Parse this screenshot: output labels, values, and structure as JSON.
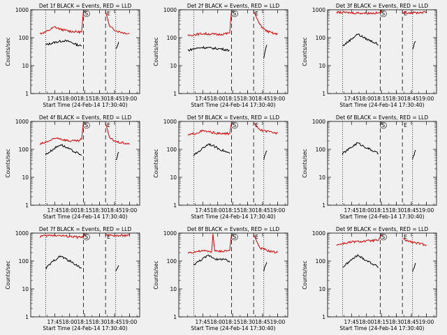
{
  "chart_data": [
    {
      "type": "line",
      "title": "Det 1f BLACK = Events, RED = LLD",
      "ylabel": "Counts/sec",
      "xlabel": "Start Time (24-Feb-14 17:30:40)",
      "yscale": "log",
      "ylim": [
        1,
        1000
      ],
      "yticks": [
        "1",
        "10",
        "100",
        "1000"
      ],
      "xticks": [
        "17:45",
        "18:00",
        "18:15",
        "18:30",
        "18:45",
        "19:00"
      ],
      "markers": {
        "S": "S",
        "E": "E"
      },
      "series": [
        {
          "name": "Events",
          "color": "#000000",
          "segments": [
            [
              [
                17.6,
                55
              ],
              [
                17.75,
                68
              ],
              [
                17.9,
                78
              ],
              [
                18.0,
                72
              ],
              [
                18.1,
                58
              ],
              [
                18.2,
                50
              ]
            ],
            [
              [
                18.77,
                40
              ],
              [
                18.82,
                70
              ]
            ]
          ]
        },
        {
          "name": "LLD",
          "color": "#dd0000",
          "segments": [
            [
              [
                17.5,
                140
              ],
              [
                17.6,
                160
              ],
              [
                17.75,
                240
              ],
              [
                17.85,
                200
              ],
              [
                18.0,
                170
              ],
              [
                18.15,
                160
              ],
              [
                18.2,
                160
              ],
              [
                18.23,
                900
              ]
            ],
            [
              [
                18.6,
                900
              ],
              [
                18.67,
                240
              ],
              [
                18.8,
                170
              ],
              [
                18.9,
                150
              ],
              [
                19.0,
                140
              ]
            ]
          ]
        }
      ]
    },
    {
      "type": "line",
      "title": "Det 2f BLACK = Events, RED = LLD",
      "ylabel": "Counts/sec",
      "xlabel": "Start Time (24-Feb-14 17:30:40)",
      "yscale": "log",
      "ylim": [
        1,
        1000
      ],
      "yticks": [
        "1",
        "10",
        "100",
        "1000"
      ],
      "xticks": [
        "17:45",
        "18:00",
        "18:15",
        "18:30",
        "18:45",
        "19:00"
      ],
      "markers": {
        "S": "S",
        "E": "E"
      },
      "series": [
        {
          "name": "Events",
          "color": "#000000",
          "segments": [
            [
              [
                17.5,
                35
              ],
              [
                17.6,
                40
              ],
              [
                17.75,
                45
              ],
              [
                17.9,
                42
              ],
              [
                18.05,
                40
              ],
              [
                18.2,
                35
              ]
            ],
            [
              [
                18.77,
                20
              ],
              [
                18.82,
                55
              ]
            ]
          ]
        },
        {
          "name": "LLD",
          "color": "#dd0000",
          "segments": [
            [
              [
                17.5,
                120
              ],
              [
                17.75,
                140
              ],
              [
                18.0,
                130
              ],
              [
                18.15,
                140
              ],
              [
                18.2,
                150
              ],
              [
                18.23,
                900
              ]
            ],
            [
              [
                18.6,
                900
              ],
              [
                18.7,
                300
              ],
              [
                18.8,
                180
              ],
              [
                18.9,
                150
              ],
              [
                19.0,
                130
              ]
            ]
          ]
        }
      ]
    },
    {
      "type": "line",
      "title": "Det 3f BLACK = Events, RED = LLD",
      "ylabel": "Counts/sec",
      "xlabel": "Start Time (24-Feb-14 17:30:40)",
      "yscale": "log",
      "ylim": [
        1,
        1000
      ],
      "yticks": [
        "1",
        "10",
        "100",
        "1000"
      ],
      "xticks": [
        "17:45",
        "18:00",
        "18:15",
        "18:30",
        "18:45",
        "19:00"
      ],
      "markers": {
        "S": "S",
        "E": "E"
      },
      "series": [
        {
          "name": "Events",
          "color": "#000000",
          "segments": [
            [
              [
                17.6,
                50
              ],
              [
                17.75,
                90
              ],
              [
                17.85,
                135
              ],
              [
                18.0,
                90
              ],
              [
                18.15,
                65
              ],
              [
                18.2,
                55
              ]
            ],
            [
              [
                18.77,
                40
              ],
              [
                18.82,
                75
              ]
            ]
          ]
        },
        {
          "name": "LLD",
          "color": "#dd0000",
          "segments": [
            [
              [
                17.5,
                820
              ],
              [
                17.75,
                780
              ],
              [
                18.0,
                760
              ],
              [
                18.2,
                760
              ],
              [
                18.25,
                900
              ]
            ],
            [
              [
                18.6,
                800
              ],
              [
                18.8,
                780
              ],
              [
                19.0,
                820
              ]
            ]
          ]
        }
      ]
    },
    {
      "type": "line",
      "title": "Det 4f BLACK = Events, RED = LLD",
      "ylabel": "Counts/sec",
      "xlabel": "Start Time (24-Feb-14 17:30:40)",
      "yscale": "log",
      "ylim": [
        1,
        1000
      ],
      "yticks": [
        "1",
        "10",
        "100",
        "1000"
      ],
      "xticks": [
        "17:45",
        "18:00",
        "18:15",
        "18:30",
        "18:45",
        "19:00"
      ],
      "markers": {
        "S": "S",
        "E": "E"
      },
      "series": [
        {
          "name": "Events",
          "color": "#000000",
          "segments": [
            [
              [
                17.6,
                65
              ],
              [
                17.75,
                110
              ],
              [
                17.85,
                150
              ],
              [
                18.0,
                100
              ],
              [
                18.15,
                70
              ],
              [
                18.2,
                60
              ]
            ],
            [
              [
                18.77,
                40
              ],
              [
                18.82,
                80
              ]
            ]
          ]
        },
        {
          "name": "LLD",
          "color": "#dd0000",
          "segments": [
            [
              [
                17.5,
                150
              ],
              [
                17.6,
                180
              ],
              [
                17.8,
                260
              ],
              [
                17.9,
                220
              ],
              [
                18.0,
                200
              ],
              [
                18.15,
                200
              ],
              [
                18.2,
                230
              ],
              [
                18.23,
                900
              ]
            ],
            [
              [
                18.6,
                900
              ],
              [
                18.67,
                250
              ],
              [
                18.8,
                180
              ],
              [
                18.9,
                170
              ],
              [
                19.0,
                150
              ]
            ]
          ]
        }
      ]
    },
    {
      "type": "line",
      "title": "Det 5f BLACK = Events, RED = LLD",
      "ylabel": "Counts/sec",
      "xlabel": "Start Time (24-Feb-14 17:30:40)",
      "yscale": "log",
      "ylim": [
        1,
        1000
      ],
      "yticks": [
        "1",
        "10",
        "100",
        "1000"
      ],
      "xticks": [
        "17:45",
        "18:00",
        "18:15",
        "18:30",
        "18:45",
        "19:00"
      ],
      "markers": {
        "S": "S",
        "E": "E"
      },
      "series": [
        {
          "name": "Events",
          "color": "#000000",
          "segments": [
            [
              [
                17.6,
                60
              ],
              [
                17.75,
                110
              ],
              [
                17.85,
                160
              ],
              [
                18.0,
                110
              ],
              [
                18.15,
                80
              ],
              [
                18.2,
                70
              ]
            ],
            [
              [
                18.77,
                45
              ],
              [
                18.82,
                90
              ]
            ]
          ]
        },
        {
          "name": "LLD",
          "color": "#dd0000",
          "segments": [
            [
              [
                17.5,
                320
              ],
              [
                17.6,
                360
              ],
              [
                17.75,
                460
              ],
              [
                17.9,
                400
              ],
              [
                18.05,
                360
              ],
              [
                18.2,
                370
              ],
              [
                18.23,
                900
              ]
            ],
            [
              [
                18.6,
                900
              ],
              [
                18.7,
                500
              ],
              [
                18.85,
                420
              ],
              [
                19.0,
                380
              ]
            ]
          ]
        }
      ]
    },
    {
      "type": "line",
      "title": "Det 6f BLACK = Events, RED = LLD",
      "ylabel": "Counts/sec",
      "xlabel": "Start Time (24-Feb-14 17:30:40)",
      "yscale": "log",
      "ylim": [
        1,
        1000
      ],
      "yticks": [
        "1",
        "10",
        "100",
        "1000"
      ],
      "xticks": [
        "17:45",
        "18:00",
        "18:15",
        "18:30",
        "18:45",
        "19:00"
      ],
      "markers": {
        "S": "S",
        "E": "E"
      },
      "series": [
        {
          "name": "Events",
          "color": "#000000",
          "segments": [
            [
              [
                17.6,
                70
              ],
              [
                17.75,
                120
              ],
              [
                17.85,
                170
              ],
              [
                18.0,
                115
              ],
              [
                18.15,
                80
              ],
              [
                18.2,
                70
              ]
            ],
            [
              [
                18.77,
                45
              ],
              [
                18.82,
                95
              ]
            ]
          ]
        }
      ]
    },
    {
      "type": "line",
      "title": "Det 7f BLACK = Events, RED = LLD",
      "ylabel": "Counts/sec",
      "xlabel": "Start Time (24-Feb-14 17:30:40)",
      "yscale": "log",
      "ylim": [
        1,
        1000
      ],
      "yticks": [
        "1",
        "10",
        "100",
        "1000"
      ],
      "xticks": [
        "17:45",
        "18:00",
        "18:15",
        "18:30",
        "18:45",
        "19:00"
      ],
      "markers": {
        "S": "S",
        "E": "E"
      },
      "series": [
        {
          "name": "Events",
          "color": "#000000",
          "segments": [
            [
              [
                17.6,
                55
              ],
              [
                17.75,
                110
              ],
              [
                17.85,
                150
              ],
              [
                18.0,
                100
              ],
              [
                18.15,
                65
              ],
              [
                18.2,
                55
              ]
            ],
            [
              [
                18.77,
                40
              ],
              [
                18.82,
                70
              ]
            ]
          ]
        },
        {
          "name": "LLD",
          "color": "#dd0000",
          "segments": [
            [
              [
                17.5,
                780
              ],
              [
                17.75,
                850
              ],
              [
                18.0,
                760
              ],
              [
                18.2,
                700
              ],
              [
                18.25,
                900
              ]
            ],
            [
              [
                18.6,
                820
              ],
              [
                18.8,
                800
              ],
              [
                19.0,
                840
              ]
            ]
          ]
        }
      ]
    },
    {
      "type": "line",
      "title": "Det 8f BLACK = Events, RED = LLD",
      "ylabel": "Counts/sec",
      "xlabel": "Start Time (24-Feb-14 17:30:40)",
      "yscale": "log",
      "ylim": [
        1,
        1000
      ],
      "yticks": [
        "1",
        "10",
        "100",
        "1000"
      ],
      "xticks": [
        "17:45",
        "18:00",
        "18:15",
        "18:30",
        "18:45",
        "19:00"
      ],
      "markers": {
        "S": "S",
        "E": "E"
      },
      "series": [
        {
          "name": "Events",
          "color": "#000000",
          "segments": [
            [
              [
                17.6,
                75
              ],
              [
                17.75,
                120
              ],
              [
                17.85,
                160
              ],
              [
                18.0,
                110
              ],
              [
                18.1,
                120
              ],
              [
                18.2,
                90
              ]
            ],
            [
              [
                18.77,
                45
              ],
              [
                18.82,
                90
              ]
            ]
          ]
        },
        {
          "name": "LLD",
          "color": "#dd0000",
          "segments": [
            [
              [
                17.5,
                200
              ],
              [
                17.75,
                230
              ],
              [
                17.9,
                220
              ],
              [
                17.92,
                950
              ],
              [
                17.95,
                230
              ],
              [
                18.0,
                220
              ],
              [
                18.2,
                240
              ],
              [
                18.23,
                900
              ]
            ],
            [
              [
                18.6,
                900
              ],
              [
                18.7,
                300
              ],
              [
                18.85,
                230
              ],
              [
                19.0,
                200
              ]
            ]
          ]
        }
      ]
    },
    {
      "type": "line",
      "title": "Det 9f BLACK = Events, RED = LLD",
      "ylabel": "Counts/sec",
      "xlabel": "Start Time (24-Feb-14 17:30:40)",
      "yscale": "log",
      "ylim": [
        1,
        1000
      ],
      "yticks": [
        "1",
        "10",
        "100",
        "1000"
      ],
      "xticks": [
        "17:45",
        "18:00",
        "18:15",
        "18:30",
        "18:45",
        "19:00"
      ],
      "markers": {
        "S": "S",
        "E": "E"
      },
      "series": [
        {
          "name": "Events",
          "color": "#000000",
          "segments": [
            [
              [
                17.6,
                60
              ],
              [
                17.75,
                110
              ],
              [
                17.85,
                160
              ],
              [
                18.0,
                105
              ],
              [
                18.15,
                70
              ],
              [
                18.2,
                60
              ]
            ],
            [
              [
                18.77,
                40
              ],
              [
                18.82,
                85
              ]
            ]
          ]
        },
        {
          "name": "LLD",
          "color": "#dd0000",
          "segments": [
            [
              [
                17.5,
                380
              ],
              [
                17.75,
                480
              ],
              [
                18.0,
                520
              ],
              [
                18.2,
                560
              ],
              [
                18.25,
                900
              ]
            ],
            [
              [
                18.6,
                600
              ],
              [
                18.8,
                450
              ],
              [
                19.0,
                380
              ]
            ]
          ]
        }
      ]
    }
  ]
}
